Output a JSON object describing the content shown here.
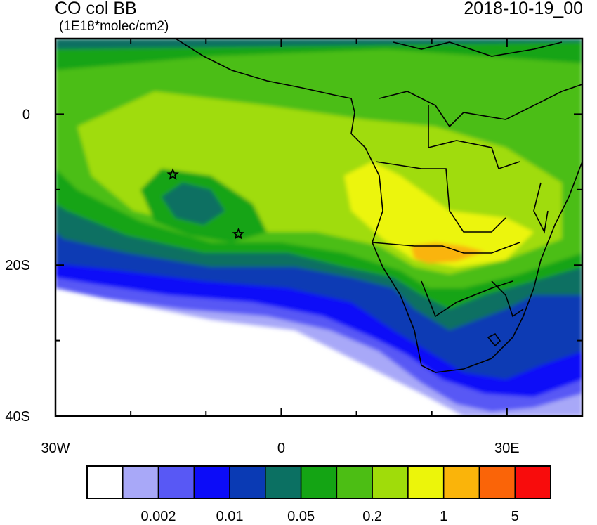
{
  "header": {
    "title": "CO col BB",
    "units": "(1E18*molec/cm2)",
    "datetime": "2018-10-19_00"
  },
  "map": {
    "lon_range": [
      -30,
      40
    ],
    "lat_range": [
      -40,
      10
    ],
    "x_ticks": [
      {
        "lon": -30,
        "label": "30W"
      },
      {
        "lon": 0,
        "label": "0"
      },
      {
        "lon": 30,
        "label": "30E"
      }
    ],
    "y_ticks": [
      {
        "lat": 0,
        "label": "0"
      },
      {
        "lat": -20,
        "label": "20S"
      },
      {
        "lat": -40,
        "label": "40S"
      }
    ],
    "markers": [
      {
        "name": "star-marker",
        "lon": -14.4,
        "lat": -8.0
      },
      {
        "name": "star-marker",
        "lon": -5.7,
        "lat": -15.9
      }
    ]
  },
  "colorbar": {
    "colors": [
      "#ffffff",
      "#a8a8f8",
      "#5858f5",
      "#0c0cf8",
      "#0a3ab4",
      "#0b7062",
      "#14a414",
      "#4cbe14",
      "#a0dc0a",
      "#ecf50a",
      "#fab40a",
      "#fa6408",
      "#f80c0c"
    ],
    "labels": [
      {
        "after_box": 2,
        "text": "0.002"
      },
      {
        "after_box": 4,
        "text": "0.01"
      },
      {
        "after_box": 6,
        "text": "0.05"
      },
      {
        "after_box": 8,
        "text": "0.2"
      },
      {
        "after_box": 10,
        "text": "1"
      },
      {
        "after_box": 12,
        "text": "5"
      }
    ]
  }
}
